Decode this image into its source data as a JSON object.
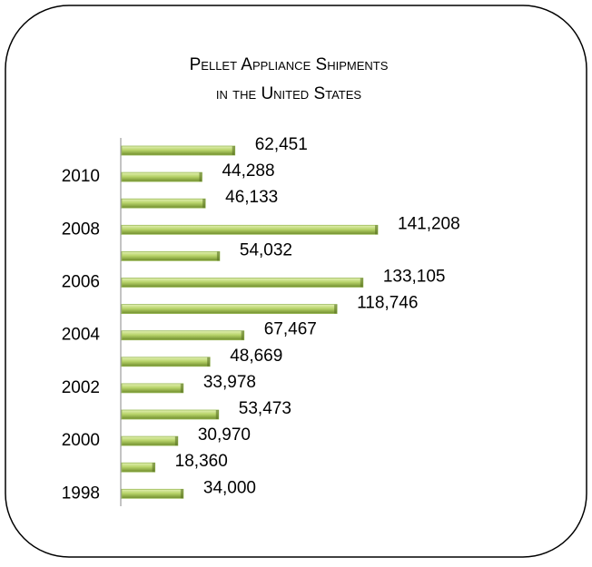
{
  "chart_data": {
    "type": "bar",
    "orientation": "horizontal",
    "title": "Pellet Appliance Shipments",
    "subtitle": "in the United States",
    "categories": [
      null,
      "2010",
      null,
      "2008",
      null,
      "2006",
      null,
      "2004",
      null,
      "2002",
      null,
      "2000",
      null,
      "1998"
    ],
    "values": [
      62451,
      44288,
      46133,
      141208,
      54032,
      133105,
      118746,
      67467,
      48669,
      33978,
      53473,
      30970,
      18360,
      34000
    ],
    "value_labels": [
      "62,451",
      "44,288",
      "46,133",
      "141,208",
      "54,032",
      "133,105",
      "118,746",
      "67,467",
      "48,669",
      "33,978",
      "53,473",
      "30,970",
      "18,360",
      "34,000"
    ],
    "color": "#9bbb59"
  }
}
